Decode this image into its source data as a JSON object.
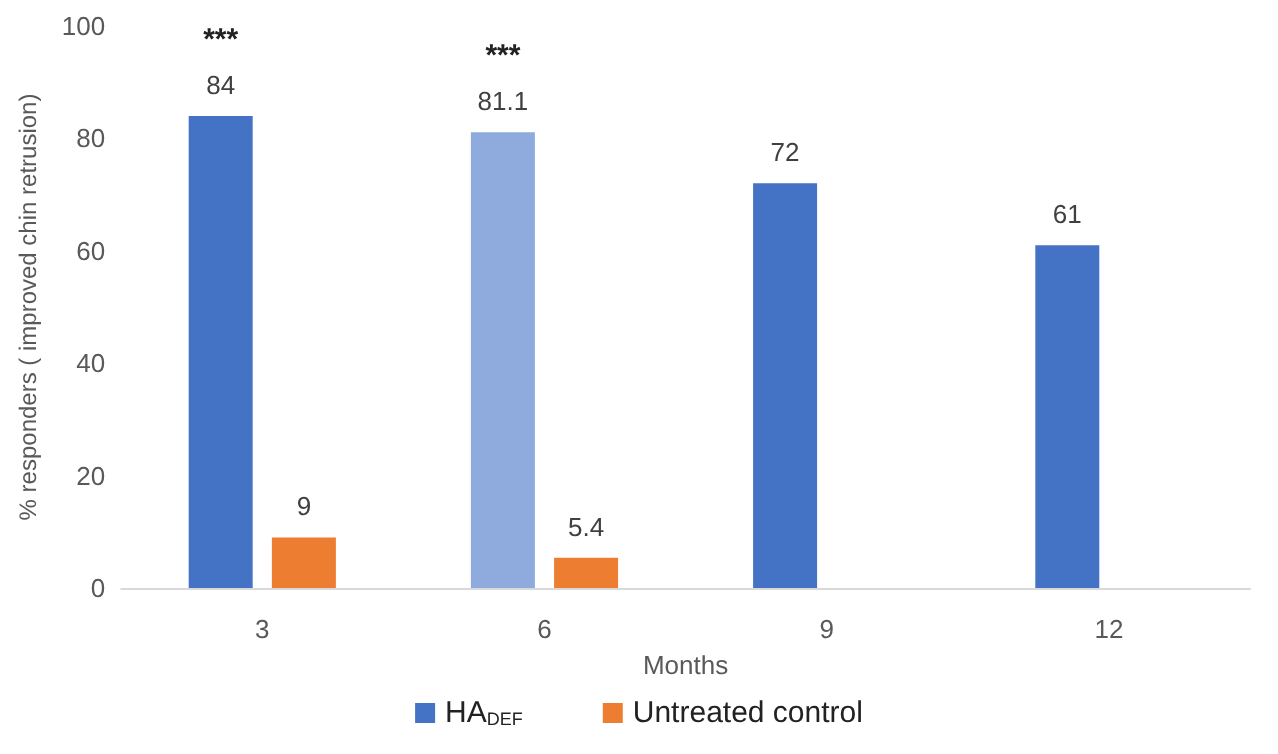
{
  "chart_data": {
    "type": "bar",
    "xlabel": "Months",
    "ylabel": "% responders ( improved chin retrusion)",
    "categories": [
      "3",
      "6",
      "9",
      "12"
    ],
    "series": [
      {
        "name": "HA$_{DEF}$",
        "color": "#4472c4",
        "colors": [
          "#4472c4",
          "#8faadc",
          "#4472c4",
          "#4472c4"
        ],
        "values": [
          84,
          81.1,
          72,
          61
        ]
      },
      {
        "name": "Untreated control",
        "color": "#ed7d31",
        "values": [
          9,
          5.4,
          null,
          null
        ]
      }
    ],
    "ylim": [
      0,
      100
    ],
    "yticks": [
      0,
      20,
      40,
      60,
      80,
      100
    ],
    "grid": false,
    "legend": "bottom",
    "data_labels": true,
    "annotations": [
      "***",
      "***"
    ]
  }
}
